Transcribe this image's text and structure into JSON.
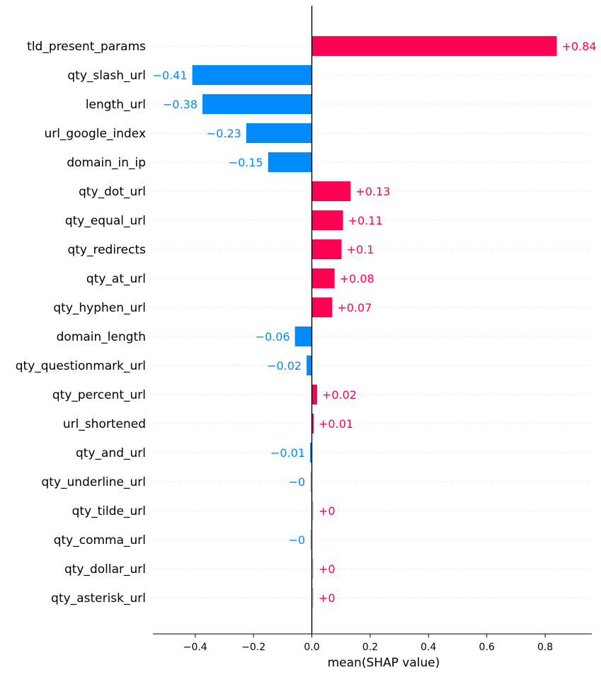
{
  "chart_data": {
    "type": "bar",
    "orientation": "horizontal",
    "xlabel": "mean(SHAP value)",
    "xlim": [
      -0.545,
      0.96
    ],
    "xticks": [
      -0.4,
      -0.2,
      0.0,
      0.2,
      0.4,
      0.6,
      0.8
    ],
    "xtick_labels": [
      "−0.4",
      "−0.2",
      "0.0",
      "0.2",
      "0.4",
      "0.6",
      "0.8"
    ],
    "categories": [
      "tld_present_params",
      "qty_slash_url",
      "length_url",
      "url_google_index",
      "domain_in_ip",
      "qty_dot_url",
      "qty_equal_url",
      "qty_redirects",
      "qty_at_url",
      "qty_hyphen_url",
      "domain_length",
      "qty_questionmark_url",
      "qty_percent_url",
      "url_shortened",
      "qty_and_url",
      "qty_underline_url",
      "qty_tilde_url",
      "qty_comma_url",
      "qty_dollar_url",
      "qty_asterisk_url"
    ],
    "values": [
      0.84,
      -0.41,
      -0.375,
      -0.225,
      -0.15,
      0.133,
      0.107,
      0.102,
      0.078,
      0.07,
      -0.058,
      -0.018,
      0.018,
      0.006,
      -0.006,
      -0.001,
      0.001,
      -0.001,
      0.001,
      0.001
    ],
    "value_labels": [
      "+0.84",
      "−0.41",
      "−0.38",
      "−0.23",
      "−0.15",
      "+0.13",
      "+0.11",
      "+0.1",
      "+0.08",
      "+0.07",
      "−0.06",
      "−0.02",
      "+0.02",
      "+0.01",
      "−0.01",
      "−0",
      "+0",
      "−0",
      "+0",
      "+0"
    ],
    "colors": {
      "positive": "#ff0052",
      "negative": "#008bfb",
      "negligible": "#d3d3d3"
    }
  }
}
